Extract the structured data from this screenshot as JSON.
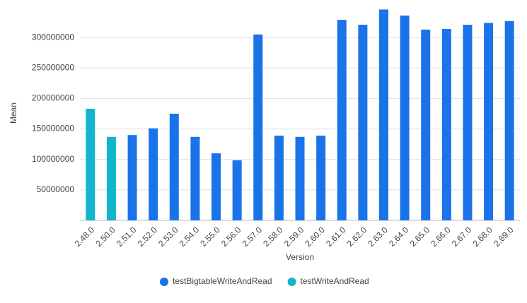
{
  "chart_data": {
    "type": "bar",
    "x_label": "Version",
    "y_label": "Mean",
    "categories": [
      "2.48.0",
      "2.50.0",
      "2.51.0",
      "2.52.0",
      "2.53.0",
      "2.54.0",
      "2.55.0",
      "2.56.0",
      "2.57.0",
      "2.58.0",
      "2.59.0",
      "2.60.0",
      "2.61.0",
      "2.62.0",
      "2.63.0",
      "2.64.0",
      "2.65.0",
      "2.66.0",
      "2.67.0",
      "2.68.0",
      "2.69.0"
    ],
    "series": [
      {
        "name": "testBigtableWriteAndRead",
        "color": "#1a73e8",
        "values": [
          null,
          null,
          140000000,
          151000000,
          175000000,
          137000000,
          110000000,
          98500000,
          305000000,
          139000000,
          137000000,
          139000000,
          329000000,
          321000000,
          346000000,
          336000000,
          313000000,
          314000000,
          321000000,
          324000000,
          327000000
        ]
      },
      {
        "name": "testWriteAndRead",
        "color": "#12b5cb",
        "values": [
          183000000,
          137000000,
          null,
          null,
          null,
          null,
          null,
          null,
          null,
          null,
          null,
          null,
          null,
          null,
          null,
          null,
          null,
          null,
          null,
          null,
          null
        ]
      }
    ],
    "ylim": [
      0,
      350000000
    ],
    "yticks": [
      50000000,
      100000000,
      150000000,
      200000000,
      250000000,
      300000000
    ],
    "grid": true
  }
}
